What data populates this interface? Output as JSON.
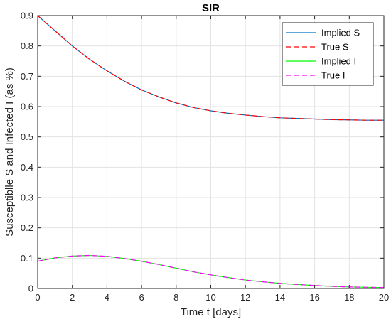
{
  "chart_data": {
    "type": "line",
    "title": "SIR",
    "xlabel": "Time t [days]",
    "ylabel": "Susceptiblle S and Infected I (as %)",
    "xlim": [
      0,
      20
    ],
    "ylim": [
      0,
      0.9
    ],
    "xticks": [
      0,
      2,
      4,
      6,
      8,
      10,
      12,
      14,
      16,
      18,
      20
    ],
    "yticks": [
      0,
      0.1,
      0.2,
      0.3,
      0.4,
      0.5,
      0.6,
      0.7,
      0.8,
      0.9
    ],
    "xtick_labels": [
      "0",
      "2",
      "4",
      "6",
      "8",
      "10",
      "12",
      "14",
      "16",
      "18",
      "20"
    ],
    "ytick_labels": [
      "0",
      "0.1",
      "0.2",
      "0.3",
      "0.4",
      "0.5",
      "0.6",
      "0.7",
      "0.8",
      "0.9"
    ],
    "grid": true,
    "legend_position": "top-right",
    "x": [
      0,
      1,
      2,
      3,
      4,
      5,
      6,
      7,
      8,
      9,
      10,
      11,
      12,
      13,
      14,
      15,
      16,
      17,
      18,
      19,
      20
    ],
    "series": [
      {
        "name": "Implied S",
        "color": "#0072BD",
        "dash": "solid",
        "values": [
          0.9,
          0.85,
          0.8,
          0.756,
          0.718,
          0.684,
          0.655,
          0.632,
          0.612,
          0.597,
          0.586,
          0.578,
          0.572,
          0.567,
          0.563,
          0.561,
          0.559,
          0.557,
          0.556,
          0.555,
          0.555
        ]
      },
      {
        "name": "True S",
        "color": "#FF0000",
        "dash": "dashed",
        "values": [
          0.9,
          0.85,
          0.8,
          0.756,
          0.718,
          0.684,
          0.655,
          0.632,
          0.612,
          0.597,
          0.586,
          0.578,
          0.572,
          0.567,
          0.563,
          0.561,
          0.559,
          0.557,
          0.556,
          0.555,
          0.555
        ]
      },
      {
        "name": "Implied I",
        "color": "#00FF00",
        "dash": "solid",
        "values": [
          0.09,
          0.101,
          0.107,
          0.109,
          0.106,
          0.099,
          0.09,
          0.079,
          0.067,
          0.055,
          0.045,
          0.036,
          0.028,
          0.022,
          0.017,
          0.013,
          0.01,
          0.007,
          0.005,
          0.004,
          0.003
        ]
      },
      {
        "name": "True I",
        "color": "#FF00FF",
        "dash": "dashed",
        "values": [
          0.09,
          0.101,
          0.107,
          0.109,
          0.106,
          0.099,
          0.09,
          0.079,
          0.067,
          0.055,
          0.045,
          0.036,
          0.028,
          0.022,
          0.017,
          0.013,
          0.01,
          0.007,
          0.005,
          0.004,
          0.003
        ]
      }
    ]
  }
}
